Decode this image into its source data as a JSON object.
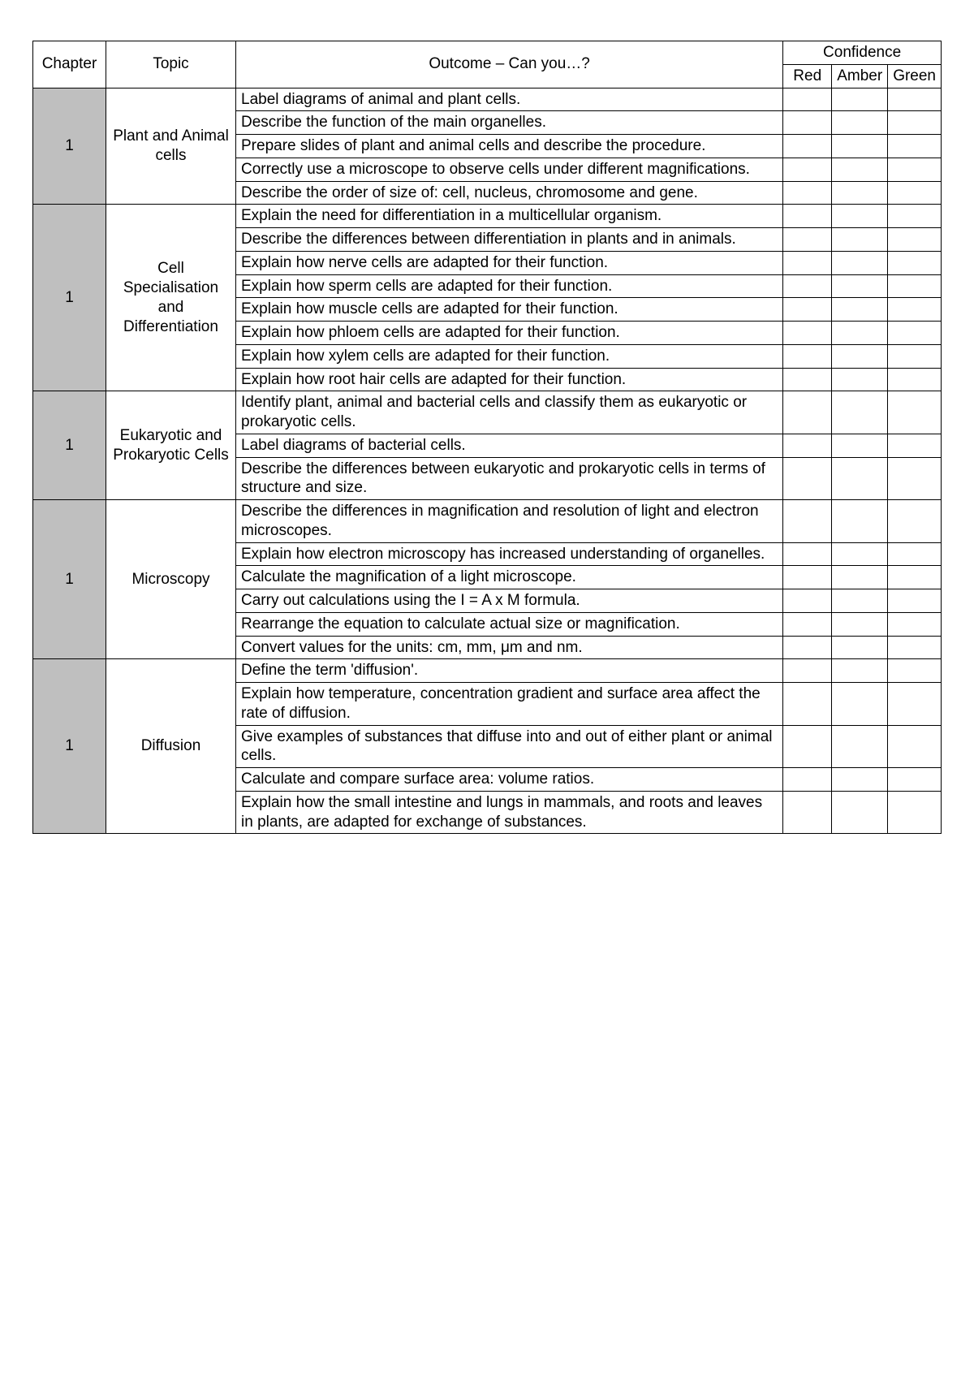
{
  "colors": {
    "background": "#ffffff",
    "border": "#000000",
    "chapter_bg": "#bfbfbf",
    "text": "#000000"
  },
  "fonts": {
    "family": "Arial, Helvetica, sans-serif",
    "size_pt": 14
  },
  "headers": {
    "chapter": "Chapter",
    "topic": "Topic",
    "outcome": "Outcome – Can you…?",
    "confidence": "Confidence",
    "red": "Red",
    "amber": "Amber",
    "green": "Green"
  },
  "sections": [
    {
      "chapter": "1",
      "topic": "Plant and Animal cells",
      "outcomes": [
        "Label diagrams of animal and plant cells.",
        "Describe the function of the main organelles.",
        "Prepare slides of plant and animal cells and describe the procedure.",
        "Correctly use a microscope to observe cells under different magnifications.",
        "Describe the order of size of: cell, nucleus, chromosome and gene."
      ]
    },
    {
      "chapter": "1",
      "topic": "Cell Specialisation and Differentiation",
      "outcomes": [
        "Explain the need for differentiation in a multicellular organism.",
        "Describe the differences between differentiation in plants and in animals.",
        "Explain how nerve cells are adapted for their function.",
        "Explain how sperm cells are adapted for their function.",
        "Explain how muscle cells are adapted for their function.",
        "Explain how phloem cells are adapted for their function.",
        "Explain how xylem cells are adapted for their function.",
        "Explain how root hair cells are adapted for their function."
      ]
    },
    {
      "chapter": "1",
      "topic": "Eukaryotic and Prokaryotic Cells",
      "outcomes": [
        "Identify plant, animal and bacterial cells and classify them as eukaryotic or prokaryotic cells.",
        "Label diagrams of bacterial cells.",
        "Describe the differences between eukaryotic and prokaryotic cells in terms of structure and size."
      ]
    },
    {
      "chapter": "1",
      "topic": "Microscopy",
      "outcomes": [
        "Describe the differences in magnification and resolution of light and electron microscopes.",
        "Explain how electron microscopy has increased understanding of organelles.",
        "Calculate the magnification of a light microscope.",
        "Carry out calculations using the I = A x M formula.",
        "Rearrange the equation to calculate actual size or magnification.",
        "Convert values for the units: cm, mm, μm and nm."
      ]
    },
    {
      "chapter": "1",
      "topic": "Diffusion",
      "outcomes": [
        "Define the term 'diffusion'.",
        "Explain how temperature, concentration gradient and surface area affect the rate of diffusion.",
        "Give examples of substances that diffuse into and out of either plant or animal cells.",
        "Calculate and compare surface area: volume ratios.",
        "Explain how the small intestine and lungs in mammals, and roots and leaves in plants, are adapted for exchange of substances."
      ]
    }
  ]
}
